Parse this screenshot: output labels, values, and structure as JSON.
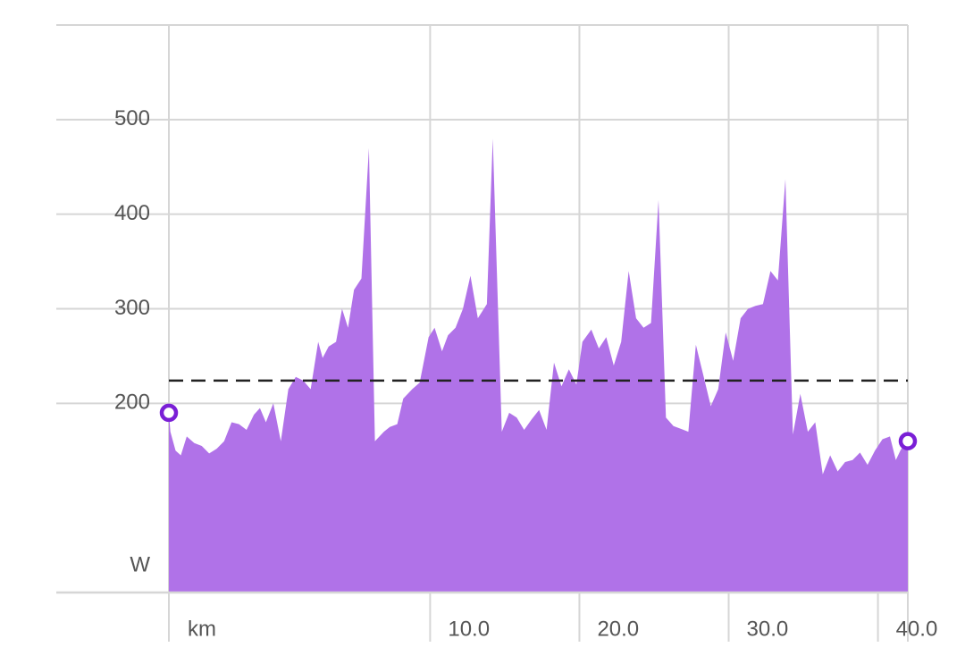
{
  "chart_data": {
    "type": "area",
    "title": "",
    "xlabel": "",
    "ylabel": "",
    "x_unit_label": "km",
    "y_unit_label": "W",
    "x_range": [
      -7.5,
      42.0
    ],
    "y_range": [
      0,
      600
    ],
    "y_ticks": [
      {
        "value": 200,
        "label": "200"
      },
      {
        "value": 300,
        "label": "300"
      },
      {
        "value": 400,
        "label": "400"
      },
      {
        "value": 500,
        "label": "500"
      }
    ],
    "x_ticks": [
      {
        "value": 10,
        "label": "10.0"
      },
      {
        "value": 20,
        "label": "20.0"
      },
      {
        "value": 30,
        "label": "30.0"
      },
      {
        "value": 40,
        "label": "40.0"
      }
    ],
    "grid": true,
    "reference_line": {
      "value": 224,
      "style": "dashed",
      "color": "#222222"
    },
    "fill_color": "#b072e8",
    "marker_color": "#7a1fd6",
    "series": [
      {
        "x": [
          -7.5,
          -7.4,
          -7.05,
          -6.7,
          -6.3,
          -5.8,
          -5.3,
          -4.8,
          -4.3,
          -3.8,
          -3.3,
          -2.8,
          -2.3,
          -1.8,
          -1.4,
          -1.0,
          -0.5,
          0.0,
          0.5,
          1.0,
          1.5,
          2.0,
          2.5,
          2.8,
          3.2,
          3.7,
          4.1,
          4.5,
          4.9,
          5.4,
          5.9,
          6.3,
          6.9,
          7.3,
          7.8,
          8.2,
          8.8,
          9.3,
          9.9,
          10.3,
          10.8,
          11.2,
          11.7,
          12.2,
          12.7,
          13.2,
          13.8,
          14.2,
          14.8,
          15.3,
          15.8,
          16.3,
          16.8,
          17.3,
          17.8,
          18.3,
          18.8,
          19.3,
          19.8,
          20.2,
          20.8,
          21.3,
          21.8,
          22.3,
          22.8,
          23.3,
          23.8,
          24.3,
          24.8,
          25.3,
          25.8,
          26.3,
          26.8,
          27.3,
          27.8,
          28.3,
          28.8,
          29.3,
          29.8,
          30.3,
          30.8,
          31.3,
          31.8,
          32.3,
          32.8,
          33.3,
          33.8,
          34.3,
          34.8,
          35.3,
          35.8,
          36.3,
          36.8,
          37.3,
          37.8,
          38.3,
          38.8,
          39.3,
          39.8,
          40.3,
          40.8,
          41.2,
          41.5,
          41.8,
          42.0
        ],
        "y": [
          190,
          170,
          150,
          145,
          165,
          158,
          155,
          147,
          152,
          160,
          180,
          178,
          172,
          188,
          195,
          180,
          200,
          160,
          215,
          228,
          224,
          215,
          265,
          248,
          260,
          265,
          300,
          280,
          320,
          332,
          470,
          160,
          170,
          175,
          178,
          205,
          215,
          222,
          270,
          280,
          255,
          272,
          280,
          300,
          335,
          290,
          305,
          480,
          170,
          190,
          185,
          172,
          183,
          193,
          172,
          243,
          218,
          236,
          220,
          265,
          278,
          258,
          270,
          240,
          265,
          340,
          290,
          280,
          285,
          415,
          185,
          176,
          173,
          170,
          262,
          230,
          197,
          215,
          275,
          245,
          290,
          300,
          303,
          305,
          340,
          330,
          437,
          167,
          210,
          170,
          180,
          125,
          145,
          128,
          138,
          140,
          148,
          135,
          150,
          162,
          165,
          140,
          150,
          158,
          160
        ]
      }
    ],
    "endpoints": [
      {
        "x": -7.5,
        "y": 190
      },
      {
        "x": 42.0,
        "y": 160
      }
    ]
  }
}
